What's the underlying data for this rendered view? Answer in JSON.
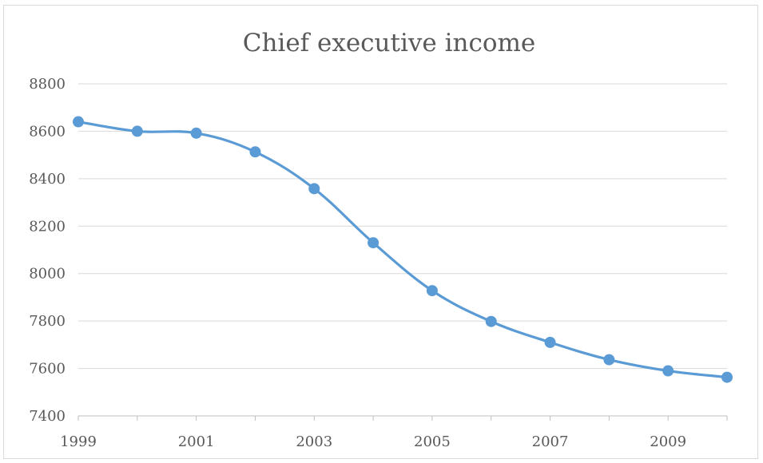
{
  "chart_data": {
    "type": "line",
    "title": "Chief executive income",
    "xlabel": "",
    "ylabel": "",
    "x": [
      1999,
      2000,
      2001,
      2002,
      2003,
      2004,
      2005,
      2006,
      2007,
      2008,
      2009,
      2010
    ],
    "series": [
      {
        "values": [
          8640,
          8600,
          8592,
          8513,
          8358,
          8130,
          7928,
          7798,
          7710,
          7637,
          7590,
          7563
        ]
      }
    ],
    "xlim": [
      1999,
      2010
    ],
    "ylim": [
      7400,
      8800
    ],
    "yticks": [
      7400,
      7600,
      7800,
      8000,
      8200,
      8400,
      8600,
      8800
    ],
    "xticks": [
      1999,
      2001,
      2003,
      2005,
      2007,
      2009
    ],
    "grid": "horizontal",
    "legend": "none",
    "colors": {
      "line": "#5b9bd5",
      "grid": "#d9d9d9",
      "text": "#595959",
      "axis": "#bfbfbf"
    }
  }
}
